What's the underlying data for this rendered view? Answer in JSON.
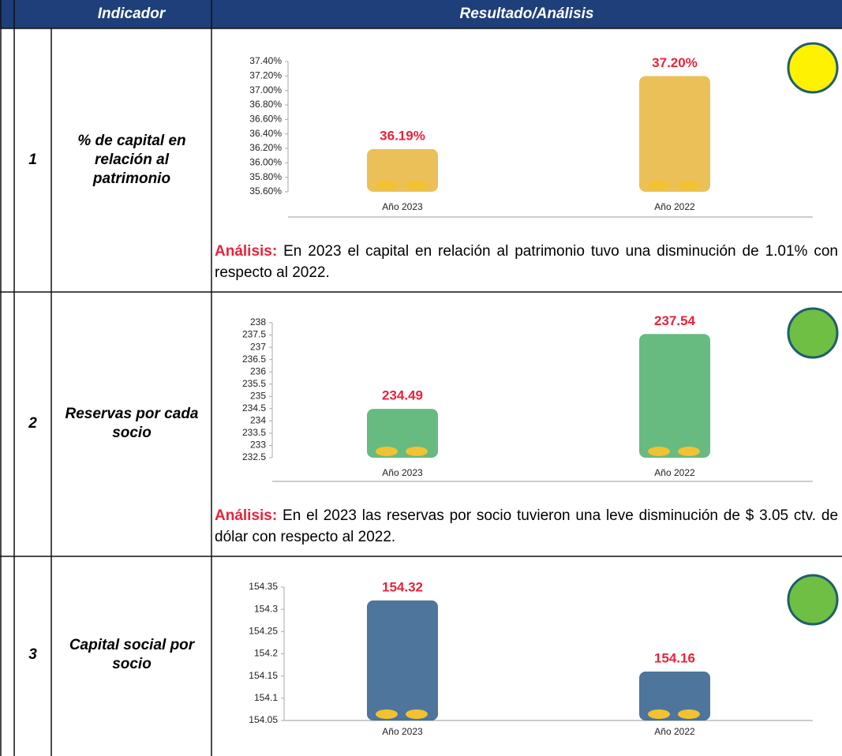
{
  "header": {
    "indicator": "Indicador",
    "result": "Resultado/Análisis"
  },
  "rows": [
    {
      "number": "1",
      "indicator": "% de capital en relación al patrimonio",
      "status_color": "#fff200",
      "chart": {
        "type": "bar",
        "categories": [
          "Año 2023",
          "Año 2022"
        ],
        "values": [
          36.19,
          37.2
        ],
        "value_labels": [
          "36.19%",
          "37.20%"
        ],
        "color": "#e9b53c",
        "ylim": [
          35.6,
          37.4
        ],
        "yticks": [
          {
            "value": 35.6,
            "label": "35.60%"
          },
          {
            "value": 35.8,
            "label": "35.80%"
          },
          {
            "value": 36.0,
            "label": "36.00%"
          },
          {
            "value": 36.2,
            "label": "36.20%"
          },
          {
            "value": 36.4,
            "label": "36.40%"
          },
          {
            "value": 36.6,
            "label": "36.60%"
          },
          {
            "value": 36.8,
            "label": "36.80%"
          },
          {
            "value": 37.0,
            "label": "37.00%"
          },
          {
            "value": 37.2,
            "label": "37.20%"
          },
          {
            "value": 37.4,
            "label": "37.40%"
          }
        ]
      },
      "analysis": {
        "label": "Análisis:",
        "text": "En 2023 el capital en relación al patrimonio tuvo una disminución de 1.01% con respecto al 2022."
      }
    },
    {
      "number": "2",
      "indicator": "Reservas por cada socio",
      "status_color": "#6fbf44",
      "chart": {
        "type": "bar",
        "categories": [
          "Año 2023",
          "Año 2022"
        ],
        "values": [
          234.49,
          237.54
        ],
        "color": "#4caf6a",
        "ylim": [
          232.5,
          238
        ],
        "yticks": [
          232.5,
          233,
          233.5,
          234,
          234.5,
          235,
          235.5,
          236,
          236.5,
          237,
          237.5,
          238
        ]
      },
      "analysis": {
        "label": "Análisis:",
        "text": "En el 2023 las reservas por socio tuvieron una leve disminución de $ 3.05 ctv. de dólar con respecto al 2022."
      }
    },
    {
      "number": "3",
      "indicator": "Capital social por socio",
      "status_color": "#6fbf44",
      "chart": {
        "type": "bar",
        "categories": [
          "Año 2023",
          "Año 2022"
        ],
        "values": [
          154.32,
          154.16
        ],
        "color": "#2f5d8a",
        "ylim": [
          154.05,
          154.35
        ],
        "yticks": [
          154.05,
          154.1,
          154.15,
          154.2,
          154.25,
          154.3,
          154.35
        ]
      }
    }
  ]
}
